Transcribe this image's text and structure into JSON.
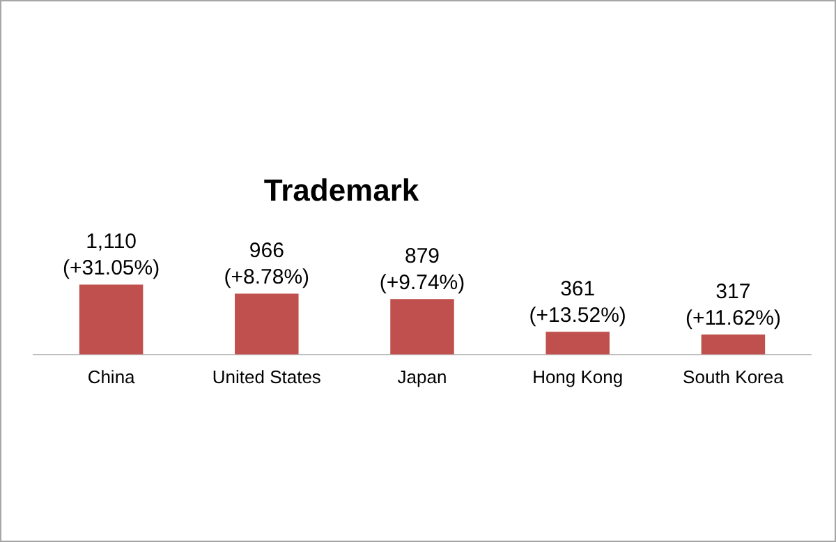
{
  "chart_data": {
    "type": "bar",
    "title": "Trademark",
    "categories": [
      "China",
      "United States",
      "Japan",
      "Hong Kong",
      "South Korea"
    ],
    "values": [
      1110,
      966,
      879,
      361,
      317
    ],
    "value_labels": [
      "1,110\n(+31.05%)",
      "966\n(+8.78%)",
      "879\n(+9.74%)",
      "361\n(+13.52%)",
      "317\n(+11.62%)"
    ],
    "color": "#c0504d",
    "grid": false,
    "legend": false
  }
}
